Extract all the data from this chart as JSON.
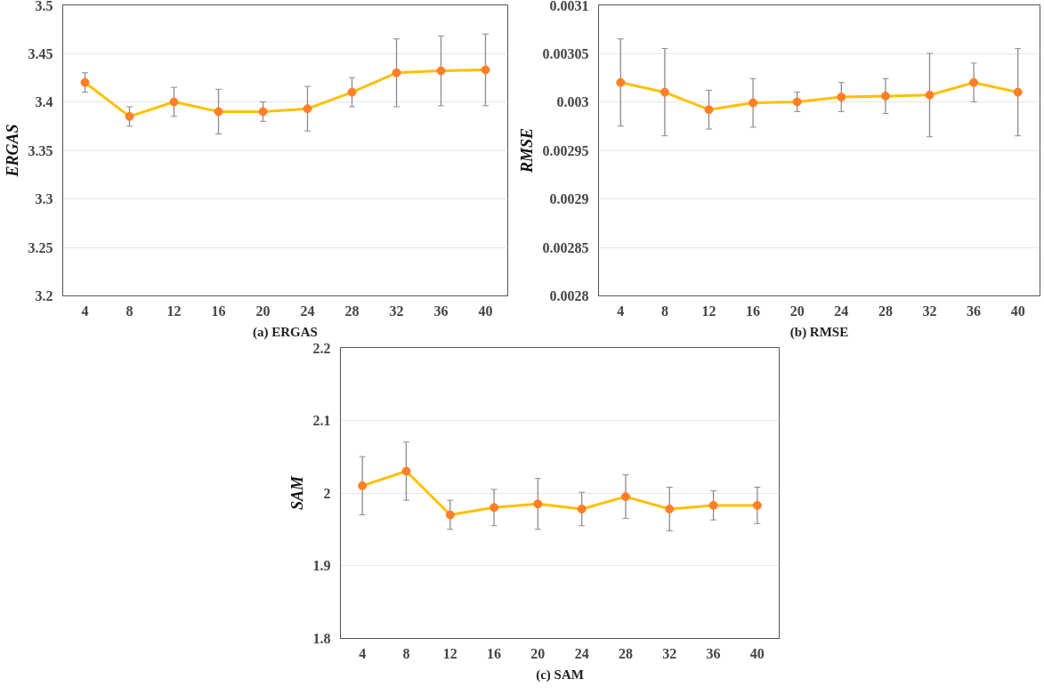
{
  "chart_data": [
    {
      "type": "line",
      "title": "(a) ERGAS",
      "ylabel": "ERGAS",
      "categories": [
        "4",
        "8",
        "12",
        "16",
        "20",
        "24",
        "28",
        "32",
        "36",
        "40"
      ],
      "series": [
        {
          "color": "#ffc000",
          "values": [
            3.42,
            3.385,
            3.4,
            3.39,
            3.39,
            3.393,
            3.41,
            3.43,
            3.432,
            3.433
          ],
          "errors": [
            0.01,
            0.01,
            0.015,
            0.023,
            0.01,
            0.023,
            0.015,
            0.035,
            0.036,
            0.037
          ]
        }
      ],
      "ylim": [
        3.2,
        3.5
      ],
      "yticks": [
        3.2,
        3.25,
        3.3,
        3.35,
        3.4,
        3.45,
        3.5
      ],
      "grid": "y",
      "marker": "circle",
      "line_style": "solid"
    },
    {
      "type": "line",
      "title": "(b) RMSE",
      "ylabel": "RMSE",
      "categories": [
        "4",
        "8",
        "12",
        "16",
        "20",
        "24",
        "28",
        "32",
        "36",
        "40"
      ],
      "series": [
        {
          "color": "#ffc000",
          "values": [
            0.00302,
            0.00301,
            0.002992,
            0.002999,
            0.003,
            0.003005,
            0.003006,
            0.003007,
            0.00302,
            0.00301
          ],
          "errors": [
            4.5e-05,
            4.5e-05,
            2e-05,
            2.5e-05,
            1e-05,
            1.5e-05,
            1.8e-05,
            4.3e-05,
            2e-05,
            4.5e-05
          ]
        }
      ],
      "ylim": [
        0.0028,
        0.0031
      ],
      "yticks": [
        0.0028,
        0.00285,
        0.0029,
        0.00295,
        0.003,
        0.00305,
        0.0031
      ],
      "grid": "y",
      "marker": "circle",
      "line_style": "solid"
    },
    {
      "type": "line",
      "title": "(c) SAM",
      "ylabel": "SAM",
      "categories": [
        "4",
        "8",
        "12",
        "16",
        "20",
        "24",
        "28",
        "32",
        "36",
        "40"
      ],
      "series": [
        {
          "color": "#ffc000",
          "values": [
            2.01,
            2.03,
            1.97,
            1.98,
            1.985,
            1.978,
            1.995,
            1.978,
            1.983,
            1.983
          ],
          "errors": [
            0.04,
            0.04,
            0.02,
            0.025,
            0.035,
            0.023,
            0.03,
            0.03,
            0.02,
            0.025
          ]
        }
      ],
      "ylim": [
        1.8,
        2.2
      ],
      "yticks": [
        1.8,
        1.9,
        2,
        2.1,
        2.2
      ],
      "grid": "y",
      "marker": "circle",
      "line_style": "solid"
    }
  ]
}
